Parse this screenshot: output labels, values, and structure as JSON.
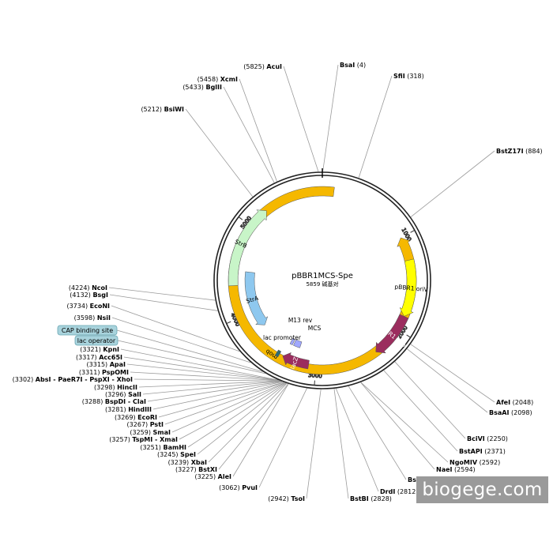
{
  "plasmid": {
    "name": "pBBR1MCS-Spe",
    "length_bp": 5859,
    "size_text": "5859 碱基对"
  },
  "ticks": [
    "1000",
    "2000",
    "3000",
    "4000",
    "5000"
  ],
  "features": [
    {
      "name": "mob",
      "color": "#f5b800",
      "direction": "reverse"
    },
    {
      "name": "pBBR1 oriV",
      "color": "#ffff00",
      "direction": "forward"
    },
    {
      "name": "pBBR1 Rep",
      "color": "#9b2d5e",
      "direction": "forward"
    },
    {
      "name": "lacZα",
      "color": "#9b2d5e",
      "direction": "forward"
    },
    {
      "name": "MCS",
      "color": "#a0a8ff",
      "direction": "none"
    },
    {
      "name": "M13 rev",
      "color": "#a0a8ff",
      "direction": "none"
    },
    {
      "name": "lac promoter",
      "color": "#2e6b73",
      "direction": "none"
    },
    {
      "name": "StrA",
      "color": "#8ec8ef",
      "direction": "reverse"
    },
    {
      "name": "StrB",
      "color": "#c8f5c8",
      "direction": "forward"
    }
  ],
  "site_labels": [
    {
      "name": "BsaI",
      "pos": "(4)"
    },
    {
      "name": "SfiI",
      "pos": "(318)"
    },
    {
      "name": "BstZ17I",
      "pos": "(884)"
    },
    {
      "name": "AfeI",
      "pos": "(2048)"
    },
    {
      "name": "BsaAI",
      "pos": "(2098)"
    },
    {
      "name": "BciVI",
      "pos": "(2250)"
    },
    {
      "name": "BstAPI",
      "pos": "(2371)"
    },
    {
      "name": "NgoMIV",
      "pos": "(2592)"
    },
    {
      "name": "NaeI",
      "pos": "(2594)"
    },
    {
      "name": "Bsu36I",
      "pos": "(2703)"
    },
    {
      "name": "DrdI",
      "pos": "(2812)"
    },
    {
      "name": "BstBI",
      "pos": "(2828)"
    },
    {
      "name": "TsoI",
      "pos": "(2942)"
    },
    {
      "name": "PvuI",
      "pos": "(3062)"
    },
    {
      "name": "AleI",
      "pos": "(3225)"
    },
    {
      "name": "BstXI",
      "pos": "(3227)"
    },
    {
      "name": "XbaI",
      "pos": "(3239)"
    },
    {
      "name": "SpeI",
      "pos": "(3245)"
    },
    {
      "name": "BamHI",
      "pos": "(3251)"
    },
    {
      "name": "TspMI - XmaI",
      "pos": "(3257)"
    },
    {
      "name": "SmaI",
      "pos": "(3259)"
    },
    {
      "name": "PstI",
      "pos": "(3267)"
    },
    {
      "name": "EcoRI",
      "pos": "(3269)"
    },
    {
      "name": "HindIII",
      "pos": "(3281)"
    },
    {
      "name": "BspDI - ClaI",
      "pos": "(3288)"
    },
    {
      "name": "SalI",
      "pos": "(3296)"
    },
    {
      "name": "HincII",
      "pos": "(3298)"
    },
    {
      "name": "AbsI - PaeR7I - PspXI - XhoI",
      "pos": "(3302)"
    },
    {
      "name": "PspOMI",
      "pos": "(3311)"
    },
    {
      "name": "ApaI",
      "pos": "(3315)"
    },
    {
      "name": "Acc65I",
      "pos": "(3317)"
    },
    {
      "name": "KpnI",
      "pos": "(3321)"
    },
    {
      "name": "NsiI",
      "pos": "(3598)"
    },
    {
      "name": "EcoNI",
      "pos": "(3734)"
    },
    {
      "name": "BsgI",
      "pos": "(4132)"
    },
    {
      "name": "NcoI",
      "pos": "(4224)"
    },
    {
      "name": "BsiWI",
      "pos": "(5212)"
    },
    {
      "name": "BglII",
      "pos": "(5433)"
    },
    {
      "name": "XcmI",
      "pos": "(5458)"
    },
    {
      "name": "AcuI",
      "pos": "(5825)"
    }
  ],
  "boxed_labels": [
    "CAP binding site",
    "lac operator"
  ],
  "watermark": "biogege.com"
}
